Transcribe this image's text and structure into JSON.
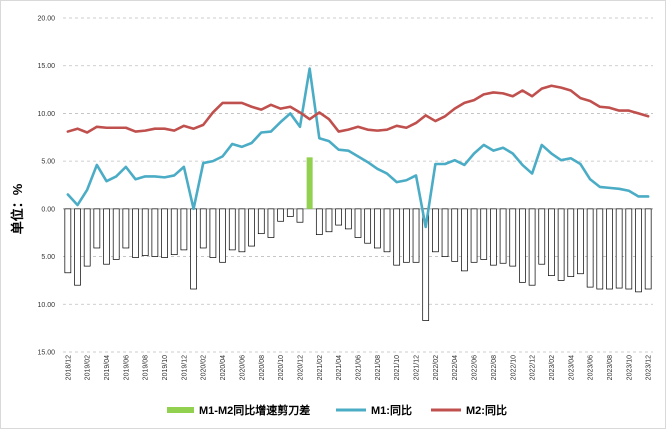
{
  "chart_data": {
    "type": "bar+line",
    "title": "",
    "ylabel": "单位：%",
    "ylim": [
      -15,
      20
    ],
    "yticks": [
      {
        "value": 20,
        "label": "20.00"
      },
      {
        "value": 15,
        "label": "15.00"
      },
      {
        "value": 10,
        "label": "10.00"
      },
      {
        "value": 5,
        "label": "5.00"
      },
      {
        "value": 0,
        "label": "0.00"
      },
      {
        "value": -5,
        "label": "5.00"
      },
      {
        "value": -10,
        "label": "10.00"
      },
      {
        "value": -15,
        "label": "15.00"
      }
    ],
    "x": [
      "2018/12",
      "2019/01",
      "2019/02",
      "2019/03",
      "2019/04",
      "2019/05",
      "2019/06",
      "2019/07",
      "2019/08",
      "2019/09",
      "2019/10",
      "2019/11",
      "2019/12",
      "2020/01",
      "2020/02",
      "2020/03",
      "2020/04",
      "2020/05",
      "2020/06",
      "2020/07",
      "2020/08",
      "2020/09",
      "2020/10",
      "2020/11",
      "2020/12",
      "2021/01",
      "2021/02",
      "2021/03",
      "2021/04",
      "2021/05",
      "2021/06",
      "2021/07",
      "2021/08",
      "2021/09",
      "2021/10",
      "2021/11",
      "2021/12",
      "2022/01",
      "2022/02",
      "2022/03",
      "2022/04",
      "2022/05",
      "2022/06",
      "2022/07",
      "2022/08",
      "2022/09",
      "2022/10",
      "2022/11",
      "2022/12",
      "2023/01",
      "2023/02",
      "2023/03",
      "2023/04",
      "2023/05",
      "2023/06",
      "2023/07",
      "2023/08",
      "2023/09",
      "2023/10",
      "2023/11",
      "2023/12"
    ],
    "xtick_labels": [
      "2018/12",
      "2019/02",
      "2019/04",
      "2019/06",
      "2019/08",
      "2019/10",
      "2019/12",
      "2020/02",
      "2020/04",
      "2020/06",
      "2020/08",
      "2020/10",
      "2020/12",
      "2021/02",
      "2021/04",
      "2021/06",
      "2021/08",
      "2021/10",
      "2021/12",
      "2022/02",
      "2022/04",
      "2022/06",
      "2022/08",
      "2022/10",
      "2022/12",
      "2023/02",
      "2023/04",
      "2023/06",
      "2023/08",
      "2023/10",
      "2023/12"
    ],
    "series": [
      {
        "name": "M1-M2同比增速剪刀差",
        "type": "bar",
        "color": "#92d050",
        "negative_color": "#ffffff",
        "values": [
          -6.7,
          -8.0,
          -6.0,
          -4.1,
          -5.8,
          -5.3,
          -4.1,
          -5.1,
          -4.9,
          -5.0,
          -5.1,
          -4.8,
          -4.3,
          -8.4,
          -4.1,
          -5.1,
          -5.6,
          -4.3,
          -4.5,
          -3.9,
          -2.6,
          -3.0,
          -1.3,
          -0.8,
          -1.4,
          5.4,
          -2.7,
          -2.4,
          -1.7,
          -2.1,
          -3.0,
          -3.6,
          -4.1,
          -4.5,
          -5.9,
          -5.6,
          -5.6,
          -11.7,
          -4.5,
          -5.0,
          -5.5,
          -6.5,
          -5.6,
          -5.3,
          -5.9,
          -5.7,
          -6.0,
          -7.7,
          -8.0,
          -5.8,
          -7.0,
          -7.5,
          -7.1,
          -6.8,
          -8.2,
          -8.4,
          -8.4,
          -8.3,
          -8.4,
          -8.7,
          -8.4
        ]
      },
      {
        "name": "M1:同比",
        "type": "line",
        "color": "#4bacc6",
        "values": [
          1.5,
          0.4,
          2.0,
          4.6,
          2.9,
          3.4,
          4.4,
          3.1,
          3.4,
          3.4,
          3.3,
          3.5,
          4.4,
          0.0,
          4.8,
          5.0,
          5.5,
          6.8,
          6.5,
          6.9,
          8.0,
          8.1,
          9.1,
          10.0,
          8.6,
          14.7,
          7.4,
          7.1,
          6.2,
          6.1,
          5.5,
          4.9,
          4.2,
          3.7,
          2.8,
          3.0,
          3.5,
          -1.9,
          4.7,
          4.7,
          5.1,
          4.6,
          5.8,
          6.7,
          6.1,
          6.4,
          5.8,
          4.6,
          3.7,
          6.7,
          5.8,
          5.1,
          5.3,
          4.7,
          3.1,
          2.3,
          2.2,
          2.1,
          1.9,
          1.3,
          1.3
        ]
      },
      {
        "name": "M2:同比",
        "type": "line",
        "color": "#c0504d",
        "values": [
          8.1,
          8.4,
          8.0,
          8.6,
          8.5,
          8.5,
          8.5,
          8.1,
          8.2,
          8.4,
          8.4,
          8.2,
          8.7,
          8.4,
          8.8,
          10.1,
          11.1,
          11.1,
          11.1,
          10.7,
          10.4,
          10.9,
          10.5,
          10.7,
          10.1,
          9.4,
          10.1,
          9.4,
          8.1,
          8.3,
          8.6,
          8.3,
          8.2,
          8.3,
          8.7,
          8.5,
          9.0,
          9.8,
          9.2,
          9.7,
          10.5,
          11.1,
          11.4,
          12.0,
          12.2,
          12.1,
          11.8,
          12.4,
          11.8,
          12.6,
          12.9,
          12.7,
          12.4,
          11.6,
          11.3,
          10.7,
          10.6,
          10.3,
          10.3,
          10.0,
          9.7
        ]
      }
    ],
    "legend": {
      "position": "bottom"
    },
    "grid": {
      "horizontal": true,
      "dashed": true
    }
  }
}
